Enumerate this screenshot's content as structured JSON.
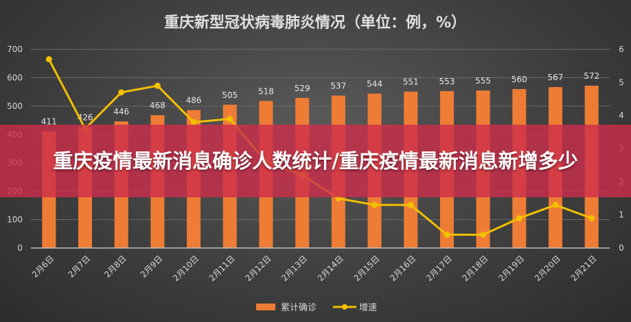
{
  "banner": {
    "text": "重庆疫情最新消息确诊人数统计/重庆疫情最新消息新增多少"
  },
  "chart_data": {
    "type": "bar",
    "title": "重庆新型冠状病毒肺炎情况（单位：例，%）",
    "categories": [
      "2月6日",
      "2月7日",
      "2月8日",
      "2月9日",
      "2月10日",
      "2月11日",
      "2月12日",
      "2月13日",
      "2月14日",
      "2月15日",
      "2月16日",
      "2月17日",
      "2月18日",
      "2月19日",
      "2月20日",
      "2月21日"
    ],
    "series": [
      {
        "name": "累计确诊",
        "kind": "bar",
        "axis": "left",
        "values": [
          411,
          426,
          446,
          468,
          486,
          505,
          518,
          529,
          537,
          544,
          551,
          553,
          555,
          560,
          567,
          572
        ]
      },
      {
        "name": "增速",
        "kind": "line",
        "axis": "right",
        "values": [
          5.7,
          3.6,
          4.7,
          4.9,
          3.8,
          3.9,
          2.6,
          2.2,
          1.5,
          1.3,
          1.3,
          0.4,
          0.4,
          0.9,
          1.3,
          0.9
        ]
      }
    ],
    "ylim": [
      0,
      700
    ],
    "yticks": [
      0,
      100,
      200,
      300,
      400,
      500,
      600,
      700
    ],
    "y2lim": [
      0,
      6
    ],
    "y2ticks": [
      0,
      1,
      2,
      3,
      4,
      5,
      6
    ],
    "legend_position": "bottom",
    "colors": {
      "bar": "#ee7c35",
      "line": "#f4c000",
      "text": "#d8d8d8",
      "axis": "#bfbfbf",
      "grid": "#6a6a6a"
    }
  }
}
